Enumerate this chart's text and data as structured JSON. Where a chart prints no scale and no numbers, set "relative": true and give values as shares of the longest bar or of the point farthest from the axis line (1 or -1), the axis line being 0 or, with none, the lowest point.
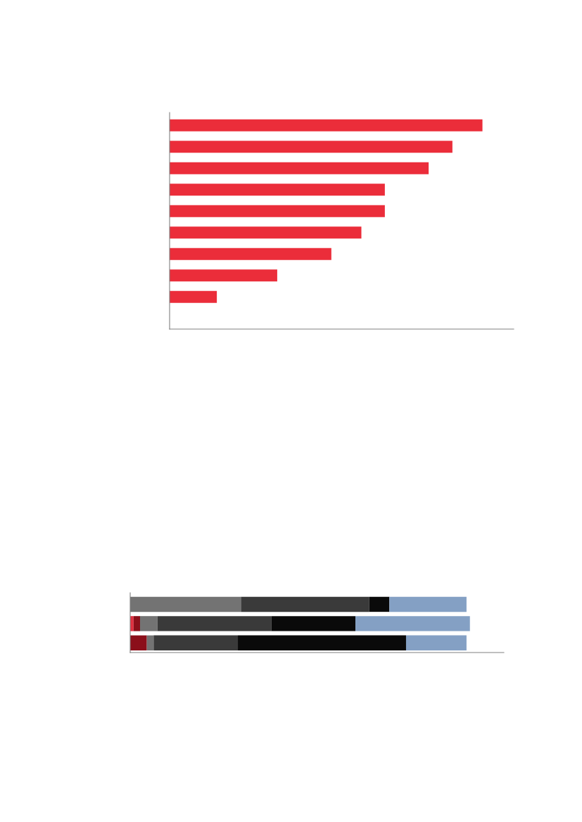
{
  "chart_data": [
    {
      "type": "bar",
      "orientation": "horizontal",
      "relative": true,
      "categories": [
        null,
        null,
        null,
        null,
        null,
        null,
        null,
        null,
        null
      ],
      "values": [
        1,
        0.904,
        0.828,
        0.688,
        0.688,
        0.613,
        0.517,
        0.344,
        0.151
      ],
      "color": "#eb2d3a",
      "grid": false,
      "legend": false
    },
    {
      "type": "bar",
      "orientation": "horizontal",
      "relative": true,
      "stacked": true,
      "categories": [
        null,
        null,
        null
      ],
      "grid": false,
      "series": [
        {
          "color": "#e03040",
          "values": [
            0,
            0.01,
            0
          ]
        },
        {
          "color": "#8b0f1a",
          "values": [
            0,
            0.019,
            0.049
          ]
        },
        {
          "color": "#737373",
          "values": [
            0.326,
            0.051,
            0.02
          ]
        },
        {
          "color": "#3a3a3a",
          "values": [
            0.378,
            0.336,
            0.248
          ]
        },
        {
          "color": "#0a0a0a",
          "values": [
            0.059,
            0.247,
            0.495
          ]
        },
        {
          "color": "#84a0c4",
          "values": [
            0.227,
            0.337,
            0.178
          ]
        }
      ]
    }
  ]
}
